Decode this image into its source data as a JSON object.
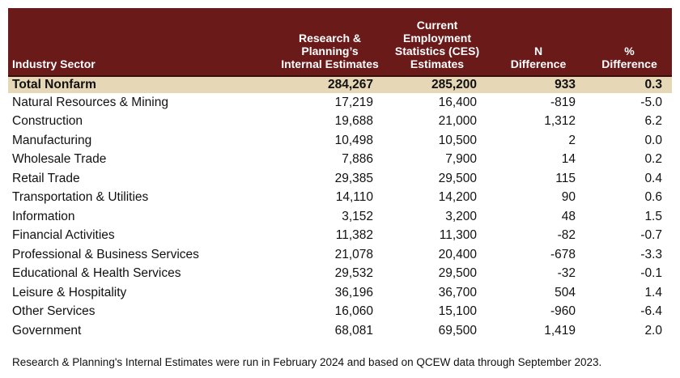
{
  "headers": {
    "sector": "Industry Sector",
    "rp": "Research &\nPlanning’s\nInternal Estimates",
    "ces": "Current\nEmployment\nStatistics (CES)\nEstimates",
    "n_diff": "N\nDifference",
    "pct_diff": "%\nDifference"
  },
  "total": {
    "sector": "Total Nonfarm",
    "rp": "284,267",
    "ces": "285,200",
    "n_diff": "933",
    "pct_diff": "0.3"
  },
  "rows": [
    {
      "sector": "Natural Resources & Mining",
      "rp": "17,219",
      "ces": "16,400",
      "n_diff": "-819",
      "pct_diff": "-5.0"
    },
    {
      "sector": "Construction",
      "rp": "19,688",
      "ces": "21,000",
      "n_diff": "1,312",
      "pct_diff": "6.2"
    },
    {
      "sector": "Manufacturing",
      "rp": "10,498",
      "ces": "10,500",
      "n_diff": "2",
      "pct_diff": "0.0"
    },
    {
      "sector": "Wholesale Trade",
      "rp": "7,886",
      "ces": "7,900",
      "n_diff": "14",
      "pct_diff": "0.2"
    },
    {
      "sector": "Retail Trade",
      "rp": "29,385",
      "ces": "29,500",
      "n_diff": "115",
      "pct_diff": "0.4"
    },
    {
      "sector": "Transportation & Utilities",
      "rp": "14,110",
      "ces": "14,200",
      "n_diff": "90",
      "pct_diff": "0.6"
    },
    {
      "sector": "Information",
      "rp": "3,152",
      "ces": "3,200",
      "n_diff": "48",
      "pct_diff": "1.5"
    },
    {
      "sector": "Financial Activities",
      "rp": "11,382",
      "ces": "11,300",
      "n_diff": "-82",
      "pct_diff": "-0.7"
    },
    {
      "sector": "Professional & Business Services",
      "rp": "21,078",
      "ces": "20,400",
      "n_diff": "-678",
      "pct_diff": "-3.3"
    },
    {
      "sector": "Educational & Health Services",
      "rp": "29,532",
      "ces": "29,500",
      "n_diff": "-32",
      "pct_diff": "-0.1"
    },
    {
      "sector": "Leisure & Hospitality",
      "rp": "36,196",
      "ces": "36,700",
      "n_diff": "504",
      "pct_diff": "1.4"
    },
    {
      "sector": "Other Services",
      "rp": "16,060",
      "ces": "15,100",
      "n_diff": "-960",
      "pct_diff": "-6.4"
    },
    {
      "sector": "Government",
      "rp": "68,081",
      "ces": "69,500",
      "n_diff": "1,419",
      "pct_diff": "2.0"
    }
  ],
  "footnote": "Research & Planning's Internal Estimates were run in February 2024 and based on QCEW data through September 2023.",
  "colors": {
    "header_bg": "#6b1a1a",
    "header_text": "#ffffff",
    "total_row_bg": "#e6d7b6"
  }
}
